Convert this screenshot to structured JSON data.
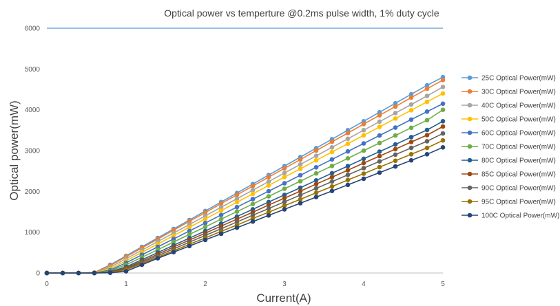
{
  "chart_data": {
    "type": "line",
    "title": "Optical power vs temperture @0.2ms pulse width, 1% duty cycle",
    "xlabel": "Current(A)",
    "ylabel": "Optical power(mW)",
    "xlim": [
      0,
      5
    ],
    "ylim": [
      0,
      6000
    ],
    "xticks": [
      0,
      1,
      2,
      3,
      4,
      5
    ],
    "yticks": [
      0,
      1000,
      2000,
      3000,
      4000,
      5000,
      6000
    ],
    "grid": false,
    "legend_position": "right",
    "x": [
      0,
      0.2,
      0.4,
      0.6,
      0.8,
      1.0,
      1.2,
      1.4,
      1.6,
      1.8,
      2.0,
      2.2,
      2.4,
      2.6,
      2.8,
      3.0,
      3.2,
      3.4,
      3.6,
      3.8,
      4.0,
      4.2,
      4.4,
      4.6,
      4.8,
      5.0
    ],
    "series": [
      {
        "name": "25C Optical Power(mW)",
        "color": "#5B9BD5",
        "values": [
          0,
          0,
          0,
          10,
          200,
          420,
          640,
          860,
          1080,
          1300,
          1520,
          1740,
          1960,
          2180,
          2400,
          2620,
          2840,
          3060,
          3280,
          3500,
          3720,
          3940,
          4160,
          4380,
          4600,
          4800
        ]
      },
      {
        "name": "30C Optical Power(mW)",
        "color": "#ED7D31",
        "values": [
          0,
          0,
          0,
          10,
          180,
          400,
          615,
          830,
          1050,
          1265,
          1480,
          1700,
          1915,
          2130,
          2350,
          2565,
          2780,
          3000,
          3215,
          3430,
          3650,
          3865,
          4080,
          4300,
          4515,
          4730
        ]
      },
      {
        "name": "40C Optical Power(mW)",
        "color": "#A5A5A5",
        "values": [
          0,
          0,
          0,
          5,
          140,
          350,
          560,
          770,
          980,
          1190,
          1400,
          1610,
          1820,
          2030,
          2240,
          2450,
          2660,
          2870,
          3080,
          3290,
          3500,
          3710,
          3920,
          4130,
          4340,
          4560
        ]
      },
      {
        "name": "50C Optical Power(mW)",
        "color": "#FFC000",
        "values": [
          0,
          0,
          0,
          5,
          100,
          300,
          505,
          710,
          915,
          1120,
          1325,
          1530,
          1735,
          1940,
          2145,
          2350,
          2555,
          2760,
          2965,
          3170,
          3375,
          3580,
          3785,
          3990,
          4195,
          4400
        ]
      },
      {
        "name": "60C Optical Power(mW)",
        "color": "#4472C4",
        "values": [
          0,
          0,
          0,
          0,
          70,
          250,
          445,
          640,
          835,
          1030,
          1225,
          1420,
          1615,
          1810,
          2005,
          2200,
          2395,
          2590,
          2785,
          2980,
          3175,
          3370,
          3565,
          3760,
          3955,
          4150
        ]
      },
      {
        "name": "70C Optical Power(mW)",
        "color": "#70AD47",
        "values": [
          0,
          0,
          0,
          0,
          50,
          200,
          385,
          570,
          760,
          945,
          1130,
          1320,
          1505,
          1690,
          1880,
          2065,
          2250,
          2440,
          2625,
          2810,
          3000,
          3185,
          3370,
          3560,
          3745,
          4000
        ]
      },
      {
        "name": "80C Optical Power(mW)",
        "color": "#255E91",
        "values": [
          0,
          0,
          0,
          0,
          30,
          150,
          325,
          500,
          680,
          855,
          1030,
          1210,
          1385,
          1560,
          1740,
          1915,
          2090,
          2270,
          2445,
          2620,
          2800,
          2975,
          3150,
          3330,
          3505,
          3720
        ]
      },
      {
        "name": "85C Optical Power(mW)",
        "color": "#9E480E",
        "values": [
          0,
          0,
          0,
          0,
          20,
          120,
          290,
          460,
          635,
          805,
          975,
          1150,
          1320,
          1490,
          1665,
          1835,
          2005,
          2180,
          2350,
          2520,
          2695,
          2865,
          3035,
          3210,
          3380,
          3590
        ]
      },
      {
        "name": "90C Optical Power(mW)",
        "color": "#636363",
        "values": [
          0,
          0,
          0,
          0,
          15,
          100,
          260,
          425,
          590,
          755,
          920,
          1085,
          1250,
          1415,
          1580,
          1745,
          1910,
          2075,
          2240,
          2405,
          2570,
          2735,
          2900,
          3065,
          3230,
          3420
        ]
      },
      {
        "name": "95C Optical Power(mW)",
        "color": "#997300",
        "values": [
          0,
          0,
          0,
          0,
          10,
          80,
          230,
          390,
          545,
          705,
          860,
          1020,
          1175,
          1335,
          1490,
          1650,
          1805,
          1965,
          2120,
          2280,
          2435,
          2595,
          2750,
          2910,
          3065,
          3250
        ]
      },
      {
        "name": "100C Optical Power(mW)",
        "color": "#264478",
        "values": [
          0,
          0,
          0,
          0,
          5,
          40,
          200,
          360,
          510,
          660,
          810,
          960,
          1110,
          1260,
          1410,
          1560,
          1710,
          1860,
          2010,
          2160,
          2310,
          2460,
          2610,
          2760,
          2910,
          3080
        ]
      }
    ]
  }
}
